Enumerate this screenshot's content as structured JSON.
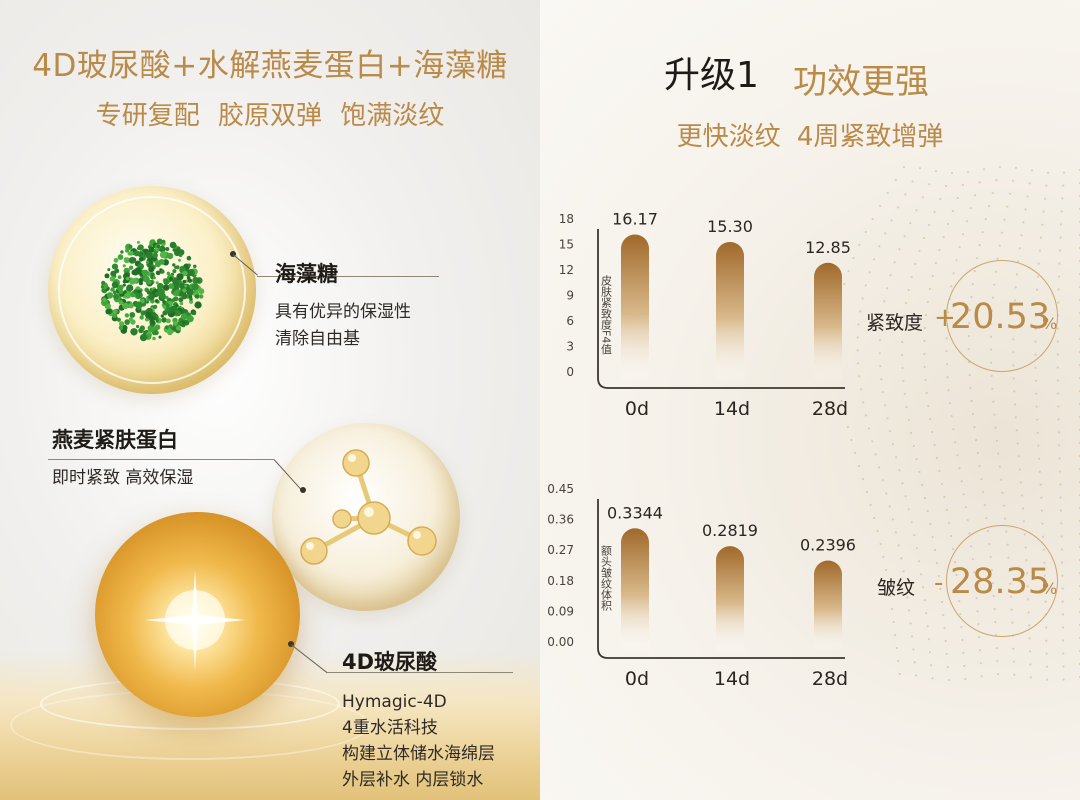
{
  "left": {
    "title_line1": "4D玻尿酸+水解燕麦蛋白+海藻糖",
    "title_line2": "专研复配  胶原双弹  饱满淡纹",
    "ingredients": [
      {
        "name": "海藻糖",
        "lines": [
          "具有优异的保湿性",
          "清除自由基"
        ]
      },
      {
        "name": "燕麦紧肤蛋白",
        "lines": [
          "即时紧致  高效保湿"
        ]
      },
      {
        "name": "4D玻尿酸",
        "lines": [
          "Hymagic-4D",
          "4重水活科技",
          "构建立体储水海绵层",
          "外层补水   内层锁水"
        ]
      }
    ]
  },
  "right": {
    "title_part1": "升级1",
    "title_part2": "功效更强",
    "subtitle": "更快淡纹  4周紧致增弹",
    "firmness": {
      "label": "紧致度",
      "sign": "+",
      "value": "20.53",
      "pct": "%"
    },
    "wrinkle": {
      "label": "皱纹",
      "sign": "-",
      "value": "28.35",
      "pct": "%"
    }
  },
  "colors": {
    "gold": "#b98a48",
    "bar_top": "#a0692b",
    "bar_bottom": "#ffffff"
  },
  "chart_data": [
    {
      "type": "bar",
      "categories": [
        "0d",
        "14d",
        "28d"
      ],
      "values": [
        16.17,
        15.3,
        12.85
      ],
      "value_labels": [
        "16.17",
        "15.30",
        "12.85"
      ],
      "ylabel": "皮肤紧致度F4值",
      "yticks": [
        "18",
        "15",
        "12",
        "9",
        "6",
        "3",
        "0"
      ],
      "ylim": [
        0,
        18
      ]
    },
    {
      "type": "bar",
      "categories": [
        "0d",
        "14d",
        "28d"
      ],
      "values": [
        0.3344,
        0.2819,
        0.2396
      ],
      "value_labels": [
        "0.3344",
        "0.2819",
        "0.2396"
      ],
      "ylabel": "额头皱纹体积",
      "yticks": [
        "0.45",
        "0.36",
        "0.27",
        "0.18",
        "0.09",
        "0.00"
      ],
      "ylim": [
        0,
        0.45
      ]
    }
  ]
}
